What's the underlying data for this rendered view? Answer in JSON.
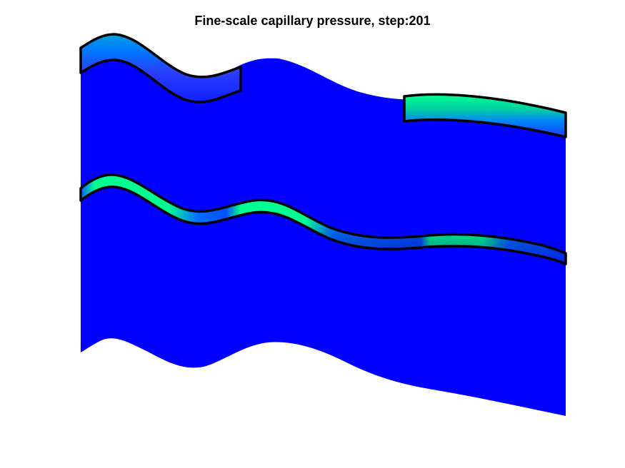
{
  "figure": {
    "title": "Fine-scale capillary pressure, step:201",
    "colors": {
      "background": "#ffffff",
      "domain_fill": "#0000ff",
      "high_value": "#00ff80",
      "mid_value": "#0080ff",
      "outline": "#000000"
    },
    "regions": [
      {
        "name": "upper-left-lens",
        "colormap": "blue-to-green",
        "outline": true
      },
      {
        "name": "upper-right-lens",
        "colormap": "blue-to-green",
        "outline": true
      },
      {
        "name": "middle-layer",
        "colormap": "blue-to-green",
        "outline": true
      },
      {
        "name": "background-domain",
        "colormap": "uniform-blue",
        "outline": false
      }
    ]
  }
}
